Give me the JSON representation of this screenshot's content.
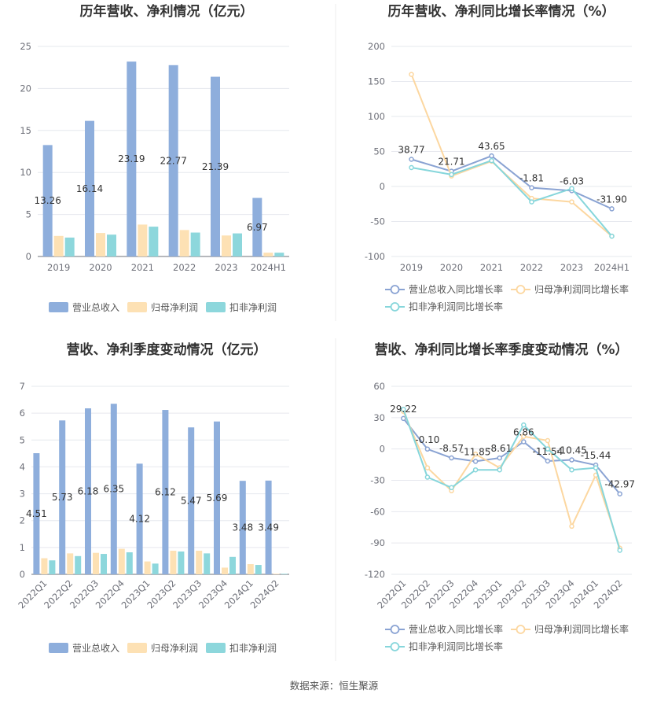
{
  "source_text": "数据来源：恒生聚源",
  "colors": {
    "revenue": "#8eaedc",
    "net_profit": "#fde1b4",
    "deducted_profit": "#8dd7dc",
    "revenue_line": "#8aa3d3",
    "net_line": "#fcd7a0",
    "deducted_line": "#86d6db"
  },
  "chart_data": [
    {
      "type": "bar",
      "title": "历年营收、净利情况（亿元）",
      "categories": [
        "2019",
        "2020",
        "2021",
        "2022",
        "2023",
        "2024H1"
      ],
      "ylim": [
        0,
        25
      ],
      "yticks": [
        0,
        5,
        10,
        15,
        20,
        25
      ],
      "grid": true,
      "legend_position": "bottom",
      "series": [
        {
          "name": "营业总收入",
          "values": [
            13.26,
            16.14,
            23.19,
            22.77,
            21.39,
            6.97
          ],
          "labeled": true
        },
        {
          "name": "归母净利润",
          "values": [
            2.45,
            2.8,
            3.8,
            3.15,
            2.5,
            0.45
          ]
        },
        {
          "name": "扣非净利润",
          "values": [
            2.25,
            2.6,
            3.55,
            2.85,
            2.75,
            0.45
          ]
        }
      ]
    },
    {
      "type": "line",
      "title": "历年营收、净利同比增长率情况（%）",
      "categories": [
        "2019",
        "2020",
        "2021",
        "2022",
        "2023",
        "2024H1"
      ],
      "ylim": [
        -100,
        200
      ],
      "yticks": [
        -100,
        -50,
        0,
        50,
        100,
        150,
        200
      ],
      "grid": true,
      "legend_position": "bottom",
      "series": [
        {
          "name": "营业总收入同比增长率",
          "values": [
            38.77,
            21.71,
            43.65,
            -1.81,
            -6.03,
            -31.9
          ],
          "labeled": true
        },
        {
          "name": "归母净利润同比增长率",
          "values": [
            160.0,
            15.0,
            36.0,
            -17.0,
            -22.0,
            -71.0
          ]
        },
        {
          "name": "扣非净利润同比增长率",
          "values": [
            27.0,
            17.0,
            37.0,
            -22.0,
            -3.0,
            -71.0
          ]
        }
      ]
    },
    {
      "type": "bar",
      "title": "营收、净利季度变动情况（亿元）",
      "categories": [
        "2022Q1",
        "2022Q2",
        "2022Q3",
        "2022Q4",
        "2023Q1",
        "2023Q2",
        "2023Q3",
        "2023Q4",
        "2024Q1",
        "2024Q2"
      ],
      "ylim": [
        0,
        7
      ],
      "yticks": [
        0,
        1,
        2,
        3,
        4,
        5,
        6,
        7
      ],
      "grid": true,
      "legend_position": "bottom",
      "series": [
        {
          "name": "营业总收入",
          "values": [
            4.51,
            5.73,
            6.18,
            6.35,
            4.12,
            6.12,
            5.47,
            5.69,
            3.48,
            3.49
          ],
          "labeled": true
        },
        {
          "name": "归母净利润",
          "values": [
            0.6,
            0.78,
            0.8,
            0.95,
            0.48,
            0.88,
            0.88,
            0.25,
            0.38,
            0.02
          ]
        },
        {
          "name": "扣非净利润",
          "values": [
            0.52,
            0.68,
            0.76,
            0.82,
            0.4,
            0.85,
            0.78,
            0.65,
            0.35,
            0.02
          ]
        }
      ]
    },
    {
      "type": "line",
      "title": "营收、净利同比增长率季度变动情况（%）",
      "categories": [
        "2022Q1",
        "2022Q2",
        "2022Q3",
        "2022Q4",
        "2023Q1",
        "2023Q2",
        "2023Q3",
        "2023Q4",
        "2024Q1",
        "2024Q2"
      ],
      "ylim": [
        -120,
        60
      ],
      "yticks": [
        -120,
        -90,
        -60,
        -30,
        0,
        30,
        60
      ],
      "grid": true,
      "legend_position": "bottom",
      "series": [
        {
          "name": "营业总收入同比增长率",
          "values": [
            29.22,
            -0.1,
            -8.57,
            -11.85,
            -8.61,
            6.86,
            -11.54,
            -10.45,
            -15.44,
            -42.97
          ],
          "labeled": true
        },
        {
          "name": "归母净利润同比增长率",
          "values": [
            36.0,
            -18.0,
            -40.0,
            -5.0,
            -18.0,
            12.0,
            8.0,
            -74.0,
            -25.0,
            -95.0
          ]
        },
        {
          "name": "扣非净利润同比增长率",
          "values": [
            38.0,
            -27.0,
            -37.0,
            -20.0,
            -20.0,
            23.0,
            0.0,
            -20.0,
            -18.0,
            -97.0
          ]
        }
      ]
    }
  ]
}
